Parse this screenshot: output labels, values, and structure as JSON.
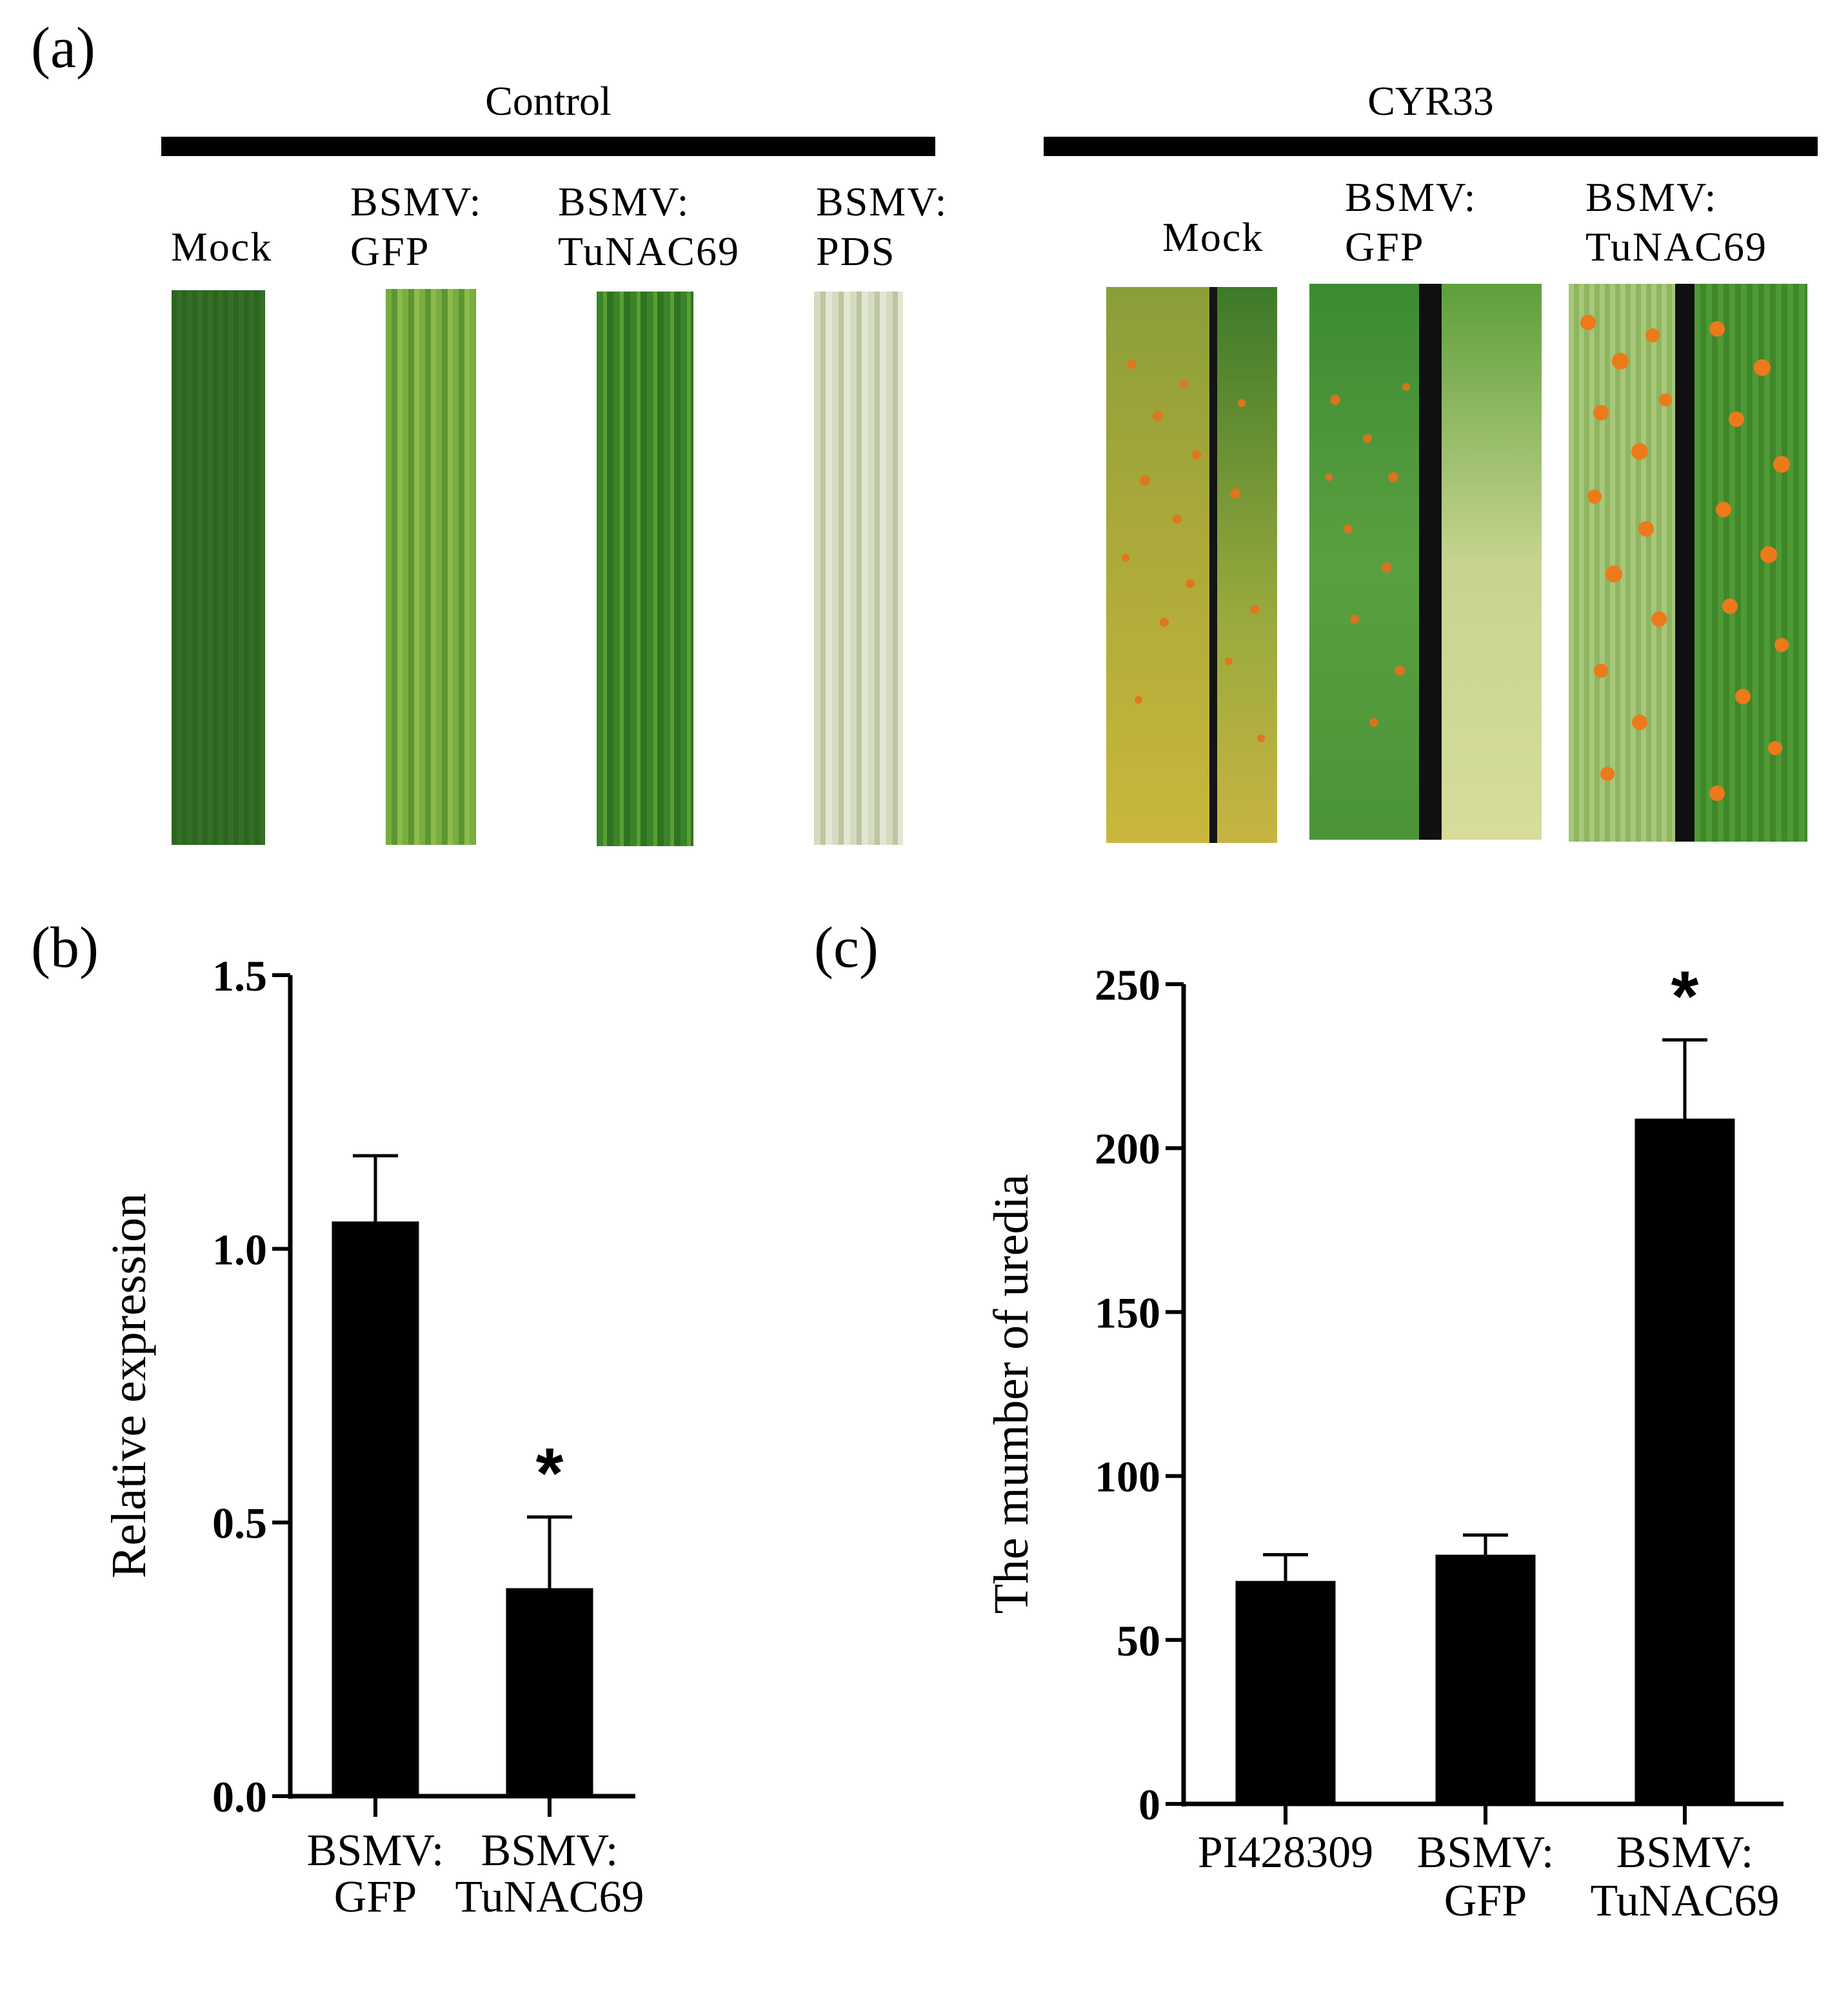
{
  "panel_a": {
    "label": "(a)",
    "groups": [
      {
        "title": "Control",
        "leaves": [
          {
            "label": "Mock",
            "color": "#2f6b22"
          },
          {
            "label": "BSMV:\nGFP",
            "color": "#6ea33a"
          },
          {
            "label": "BSMV:\nTuNAC69",
            "color": "#3f8a2c"
          },
          {
            "label": "BSMV:\nPDS",
            "color": "#c9d2b4"
          }
        ]
      },
      {
        "title": "CYR33",
        "leaves": [
          {
            "label": "Mock",
            "color": "#b7b43a"
          },
          {
            "label": "BSMV:\nGFP",
            "color": "#5e9a36"
          },
          {
            "label": "BSMV:\nTuNAC69",
            "color": "#7aa83c"
          }
        ]
      }
    ],
    "colors": {
      "uredia": "#e8781c",
      "leaf_bg": "#111111"
    }
  },
  "chart_data": [
    {
      "panel_label": "(b)",
      "type": "bar",
      "title": "",
      "xlabel": "",
      "ylabel": "Relative expression",
      "categories": [
        "BSMV:\nGFP",
        "BSMV:\nTuNAC69"
      ],
      "values": [
        1.05,
        0.38
      ],
      "errors": [
        0.12,
        0.13
      ],
      "significance": [
        "",
        "*"
      ],
      "ylim": [
        0,
        1.5
      ],
      "yticks": [
        0.0,
        0.5,
        1.0,
        1.5
      ],
      "ytick_labels": [
        "0.0",
        "0.5",
        "1.0",
        "1.5"
      ],
      "grid": false
    },
    {
      "panel_label": "(c)",
      "type": "bar",
      "title": "",
      "xlabel": "",
      "ylabel": "The mumber of uredia",
      "categories": [
        "PI428309",
        "BSMV:\nGFP",
        "BSMV:\nTuNAC69"
      ],
      "values": [
        68,
        76,
        209
      ],
      "errors": [
        8,
        6,
        24
      ],
      "significance": [
        "",
        "",
        "*"
      ],
      "ylim": [
        0,
        250
      ],
      "yticks": [
        0,
        50,
        100,
        150,
        200,
        250
      ],
      "ytick_labels": [
        "0",
        "50",
        "100",
        "150",
        "200",
        "250"
      ],
      "grid": false
    }
  ]
}
